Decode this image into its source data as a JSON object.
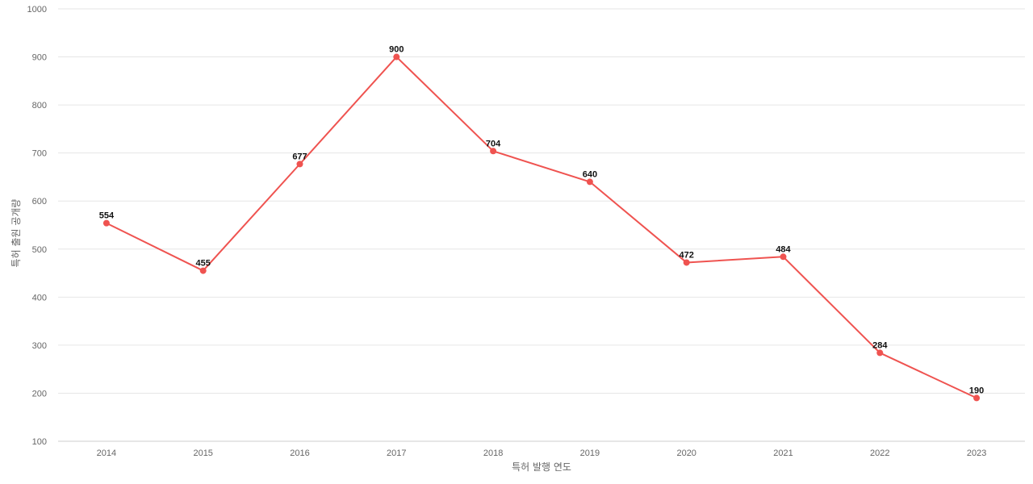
{
  "chart_data": {
    "type": "line",
    "title": "",
    "xlabel": "특허 발행 연도",
    "ylabel": "특허 출원 공개량",
    "categories": [
      "2014",
      "2015",
      "2016",
      "2017",
      "2018",
      "2019",
      "2020",
      "2021",
      "2022",
      "2023"
    ],
    "series": [
      {
        "values": [
          554,
          455,
          677,
          900,
          704,
          640,
          472,
          484,
          284,
          190
        ],
        "color": "#ef5350"
      }
    ],
    "ylim": [
      100,
      1000
    ],
    "yticks": [
      "100",
      "200",
      "300",
      "400",
      "500",
      "600",
      "700",
      "800",
      "900",
      "1000"
    ],
    "grid": true,
    "legend": "none",
    "data_labels": true
  }
}
